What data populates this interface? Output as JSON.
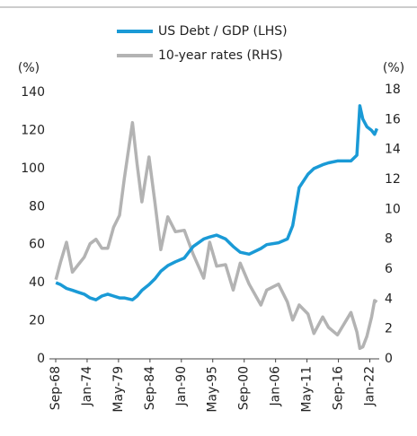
{
  "chart_data": {
    "type": "line",
    "ylabel": "(%)",
    "y2label": "(%)",
    "x": [
      1968.7,
      1969.5,
      1970.5,
      1971.5,
      1972.5,
      1973.5,
      1974.5,
      1975.5,
      1976.5,
      1977.5,
      1978.5,
      1979.5,
      1980.3,
      1981.7,
      1982.5,
      1983.3,
      1984.5,
      1985.5,
      1986.5,
      1987.7,
      1989,
      1990.5,
      1992,
      1993.8,
      1994.8,
      1996,
      1997.5,
      1998.8,
      2000,
      2001.5,
      2003.5,
      2004.5,
      2006.5,
      2008,
      2008.9,
      2010,
      2011.5,
      2012.5,
      2014,
      2015,
      2016.5,
      2018.8,
      2019.8,
      2020.3,
      2020.8,
      2021.5,
      2022.3,
      2022.8,
      2023.2
    ],
    "series": [
      {
        "name": "US Debt / GDP (LHS)",
        "color": "#1a9ad6",
        "axis": "y",
        "values": [
          40,
          39,
          37,
          36,
          35,
          34,
          32,
          31,
          33,
          34,
          33,
          32,
          32,
          31,
          33,
          36,
          39,
          42,
          46,
          49,
          51,
          53,
          59,
          63,
          64,
          65,
          63,
          59,
          56,
          55,
          58,
          60,
          61,
          63,
          70,
          90,
          97,
          100,
          102,
          103,
          104,
          104,
          107,
          133,
          126,
          122,
          120,
          118,
          121
        ]
      },
      {
        "name": "10-year rates (RHS)",
        "color": "#b3b3b3",
        "axis": "y2",
        "values": [
          5.3,
          6.5,
          7.8,
          5.8,
          6.3,
          6.8,
          7.7,
          8.0,
          7.4,
          7.4,
          8.8,
          9.6,
          12.0,
          15.8,
          13.0,
          10.5,
          13.5,
          10.5,
          7.3,
          9.5,
          8.5,
          8.6,
          7.0,
          5.4,
          7.8,
          6.2,
          6.3,
          4.6,
          6.4,
          5.0,
          3.6,
          4.6,
          5.0,
          3.8,
          2.6,
          3.6,
          3.0,
          1.7,
          2.8,
          2.1,
          1.6,
          3.1,
          1.8,
          0.7,
          0.8,
          1.5,
          2.8,
          3.9,
          3.8
        ]
      }
    ],
    "xlim": [
      1967.6,
      2023.6
    ],
    "xticks": [
      {
        "value": 1968.67,
        "label": "Sep-68"
      },
      {
        "value": 1974.0,
        "label": "Jan-74"
      },
      {
        "value": 1979.33,
        "label": "May-79"
      },
      {
        "value": 1984.67,
        "label": "Sep-84"
      },
      {
        "value": 1990.0,
        "label": "Jan-90"
      },
      {
        "value": 1995.33,
        "label": "May-95"
      },
      {
        "value": 2000.67,
        "label": "Sep-00"
      },
      {
        "value": 2006.0,
        "label": "Jan-06"
      },
      {
        "value": 2011.33,
        "label": "May-11"
      },
      {
        "value": 2016.67,
        "label": "Sep-16"
      },
      {
        "value": 2022.0,
        "label": "Jan-22"
      }
    ],
    "ylim": [
      0,
      140
    ],
    "yticks": [
      0,
      20,
      40,
      60,
      80,
      100,
      120,
      140
    ],
    "y2lim": [
      0,
      18
    ],
    "y2ticks": [
      0,
      2,
      4,
      6,
      8,
      10,
      12,
      14,
      16,
      18
    ]
  }
}
